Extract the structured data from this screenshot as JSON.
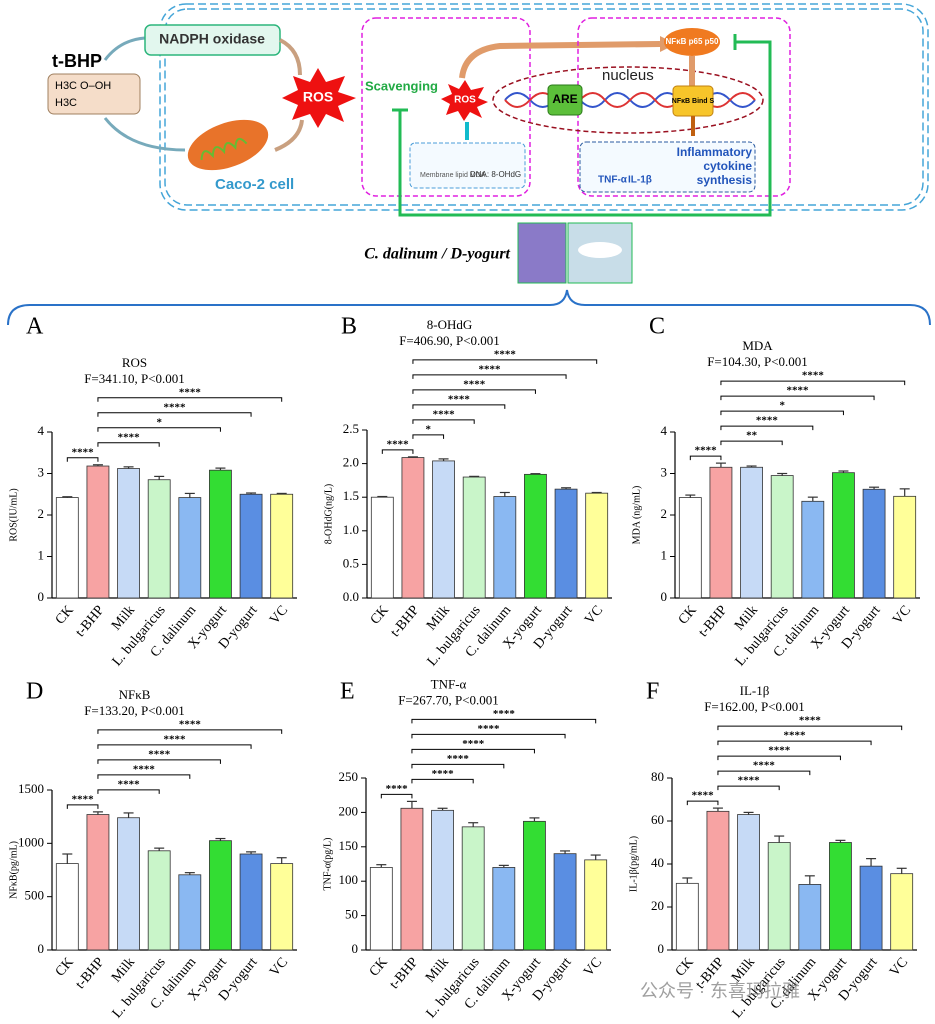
{
  "diagram": {
    "inducer": "t-BHP",
    "molecule_top": "H3C  O–OH",
    "molecule_bottom": "H3C",
    "enzyme": "NADPH oxidase",
    "ros_main": "ROS",
    "cell": "Caco-2 cell",
    "scavenging": "Scavenging",
    "ros_small": "ROS",
    "damage_lipid": "Membrane lipid MDA",
    "damage_dna": "DNA: 8-OHdG",
    "nucleus": "nucleus",
    "are": "ARE",
    "nfkb": "NFκB p65 p50",
    "nfkb_bind": "NFκB Bind S",
    "tnf": "TNF-α",
    "il": "IL-1β",
    "inflammatory": "Inflammatory cytokine synthesis",
    "treatment": "C. dalinum / D-yogurt"
  },
  "watermark": "公众号 · 东喜玛拉雅",
  "chart_data": [
    {
      "type": "bar",
      "panel": "A",
      "title": "ROS",
      "subtitle": "F=341.10, P<0.001",
      "y_label": "ROS(IU/mL)",
      "categories": [
        "CK",
        "t-BHP",
        "Milk",
        "L. bulgaricus",
        "C. dalinum",
        "X-yogurt",
        "D-yogurt",
        "VC"
      ],
      "values": [
        2.42,
        3.18,
        3.12,
        2.85,
        2.42,
        3.08,
        2.5,
        2.5
      ],
      "errors": [
        0.02,
        0.03,
        0.04,
        0.08,
        0.1,
        0.05,
        0.03,
        0.02
      ],
      "colors": [
        "#ffffff",
        "#f7a3a3",
        "#c6daf6",
        "#c9f5c9",
        "#8ab8f2",
        "#33dd33",
        "#5a8ee2",
        "#ffff99"
      ],
      "ylim": [
        0,
        4
      ],
      "yticks": [
        0,
        1,
        2,
        3,
        4
      ],
      "brackets": [
        {
          "from": "CK",
          "to": "t-BHP",
          "label": "****"
        },
        {
          "from": "t-BHP",
          "to": "L. bulgaricus",
          "label": "****"
        },
        {
          "from": "t-BHP",
          "to": "X-yogurt",
          "label": "*"
        },
        {
          "from": "t-BHP",
          "to": "D-yogurt",
          "label": "****"
        },
        {
          "from": "t-BHP",
          "to": "VC",
          "label": "****"
        }
      ]
    },
    {
      "type": "bar",
      "panel": "B",
      "title": "8-OHdG",
      "subtitle": "F=406.90, P<0.001",
      "y_label": "8-OHdG(ng/L)",
      "categories": [
        "CK",
        "t-BHP",
        "Milk",
        "L. bulgaricus",
        "C. dalinum",
        "X-yogurt",
        "D-yogurt",
        "VC"
      ],
      "values": [
        1.5,
        2.09,
        2.04,
        1.8,
        1.51,
        1.84,
        1.62,
        1.56
      ],
      "errors": [
        0.01,
        0.01,
        0.03,
        0.01,
        0.06,
        0.01,
        0.02,
        0.01
      ],
      "colors": [
        "#ffffff",
        "#f7a3a3",
        "#c6daf6",
        "#c9f5c9",
        "#8ab8f2",
        "#33dd33",
        "#5a8ee2",
        "#ffff99"
      ],
      "ylim": [
        0,
        2.5
      ],
      "yticks": [
        {
          "value": 0,
          "label": "0.0"
        },
        0.5,
        {
          "value": 1,
          "label": "1.0"
        },
        1.5,
        {
          "value": 2,
          "label": "2.0"
        },
        2.5
      ],
      "brackets": [
        {
          "from": "CK",
          "to": "t-BHP",
          "label": "****"
        },
        {
          "from": "t-BHP",
          "to": "Milk",
          "label": "*"
        },
        {
          "from": "t-BHP",
          "to": "L. bulgaricus",
          "label": "****"
        },
        {
          "from": "t-BHP",
          "to": "C. dalinum",
          "label": "****"
        },
        {
          "from": "t-BHP",
          "to": "X-yogurt",
          "label": "****"
        },
        {
          "from": "t-BHP",
          "to": "D-yogurt",
          "label": "****"
        },
        {
          "from": "t-BHP",
          "to": "VC",
          "label": "****"
        }
      ]
    },
    {
      "type": "bar",
      "panel": "C",
      "title": "MDA",
      "subtitle": "F=104.30, P<0.001",
      "y_label": "MDA (ng/mL)",
      "categories": [
        "CK",
        "t-BHP",
        "Milk",
        "L. bulgaricus",
        "C. dalinum",
        "X-yogurt",
        "D-yogurt",
        "VC"
      ],
      "values": [
        2.42,
        3.15,
        3.15,
        2.95,
        2.33,
        3.02,
        2.62,
        2.45
      ],
      "errors": [
        0.06,
        0.1,
        0.03,
        0.05,
        0.1,
        0.04,
        0.05,
        0.18
      ],
      "colors": [
        "#ffffff",
        "#f7a3a3",
        "#c6daf6",
        "#c9f5c9",
        "#8ab8f2",
        "#33dd33",
        "#5a8ee2",
        "#ffff99"
      ],
      "ylim": [
        0,
        4
      ],
      "yticks": [
        0,
        1,
        2,
        3,
        4
      ],
      "brackets": [
        {
          "from": "CK",
          "to": "t-BHP",
          "label": "****"
        },
        {
          "from": "t-BHP",
          "to": "L. bulgaricus",
          "label": "**"
        },
        {
          "from": "t-BHP",
          "to": "C. dalinum",
          "label": "****"
        },
        {
          "from": "t-BHP",
          "to": "X-yogurt",
          "label": "*"
        },
        {
          "from": "t-BHP",
          "to": "D-yogurt",
          "label": "****"
        },
        {
          "from": "t-BHP",
          "to": "VC",
          "label": "****"
        }
      ]
    },
    {
      "type": "bar",
      "panel": "D",
      "title": "NFκB",
      "subtitle": "F=133.20, P<0.001",
      "y_label": "NFκB(pg/mL)",
      "categories": [
        "CK",
        "t-BHP",
        "Milk",
        "L. bulgaricus",
        "C. dalinum",
        "X-yogurt",
        "D-yogurt",
        "VC"
      ],
      "values": [
        810,
        1270,
        1240,
        930,
        705,
        1025,
        900,
        810
      ],
      "errors": [
        90,
        25,
        45,
        25,
        20,
        20,
        20,
        55
      ],
      "colors": [
        "#ffffff",
        "#f7a3a3",
        "#c6daf6",
        "#c9f5c9",
        "#8ab8f2",
        "#33dd33",
        "#5a8ee2",
        "#ffff99"
      ],
      "ylim": [
        0,
        1500
      ],
      "yticks": [
        0,
        500,
        1000,
        1500
      ],
      "brackets": [
        {
          "from": "CK",
          "to": "t-BHP",
          "label": "****"
        },
        {
          "from": "t-BHP",
          "to": "L. bulgaricus",
          "label": "****"
        },
        {
          "from": "t-BHP",
          "to": "C. dalinum",
          "label": "****"
        },
        {
          "from": "t-BHP",
          "to": "X-yogurt",
          "label": "****"
        },
        {
          "from": "t-BHP",
          "to": "D-yogurt",
          "label": "****"
        },
        {
          "from": "t-BHP",
          "to": "VC",
          "label": "****"
        }
      ]
    },
    {
      "type": "bar",
      "panel": "E",
      "title": "TNF-α",
      "subtitle": "F=267.70, P<0.001",
      "y_label": "TNF-α(pg/L)",
      "categories": [
        "CK",
        "t-BHP",
        "Milk",
        "L. bulgaricus",
        "C. dalinum",
        "X-yogurt",
        "D-yogurt",
        "VC"
      ],
      "values": [
        120,
        206,
        203,
        179,
        120,
        187,
        140,
        131
      ],
      "errors": [
        4,
        10,
        3,
        6,
        3,
        5,
        4,
        7
      ],
      "colors": [
        "#ffffff",
        "#f7a3a3",
        "#c6daf6",
        "#c9f5c9",
        "#8ab8f2",
        "#33dd33",
        "#5a8ee2",
        "#ffff99"
      ],
      "ylim": [
        0,
        250
      ],
      "yticks": [
        0,
        50,
        100,
        150,
        200,
        250
      ],
      "brackets": [
        {
          "from": "CK",
          "to": "t-BHP",
          "label": "****"
        },
        {
          "from": "t-BHP",
          "to": "L. bulgaricus",
          "label": "****"
        },
        {
          "from": "t-BHP",
          "to": "C. dalinum",
          "label": "****"
        },
        {
          "from": "t-BHP",
          "to": "X-yogurt",
          "label": "****"
        },
        {
          "from": "t-BHP",
          "to": "D-yogurt",
          "label": "****"
        },
        {
          "from": "t-BHP",
          "to": "VC",
          "label": "****"
        }
      ]
    },
    {
      "type": "bar",
      "panel": "F",
      "title": "IL-1β",
      "subtitle": "F=162.00, P<0.001",
      "y_label": "IL-1β(pg/mL)",
      "categories": [
        "CK",
        "t-BHP",
        "Milk",
        "L. bulgaricus",
        "C. dalinum",
        "X-yogurt",
        "D-yogurt",
        "VC"
      ],
      "values": [
        31,
        64.5,
        63,
        50,
        30.5,
        50,
        39,
        35.5
      ],
      "errors": [
        2.5,
        1.5,
        1,
        3,
        4,
        1,
        3.5,
        2.5
      ],
      "colors": [
        "#ffffff",
        "#f7a3a3",
        "#c6daf6",
        "#c9f5c9",
        "#8ab8f2",
        "#33dd33",
        "#5a8ee2",
        "#ffff99"
      ],
      "ylim": [
        0,
        80
      ],
      "yticks": [
        0,
        20,
        40,
        60,
        80
      ],
      "brackets": [
        {
          "from": "CK",
          "to": "t-BHP",
          "label": "****"
        },
        {
          "from": "t-BHP",
          "to": "L. bulgaricus",
          "label": "****"
        },
        {
          "from": "t-BHP",
          "to": "C. dalinum",
          "label": "****"
        },
        {
          "from": "t-BHP",
          "to": "X-yogurt",
          "label": "****"
        },
        {
          "from": "t-BHP",
          "to": "D-yogurt",
          "label": "****"
        },
        {
          "from": "t-BHP",
          "to": "VC",
          "label": "****"
        }
      ]
    }
  ]
}
